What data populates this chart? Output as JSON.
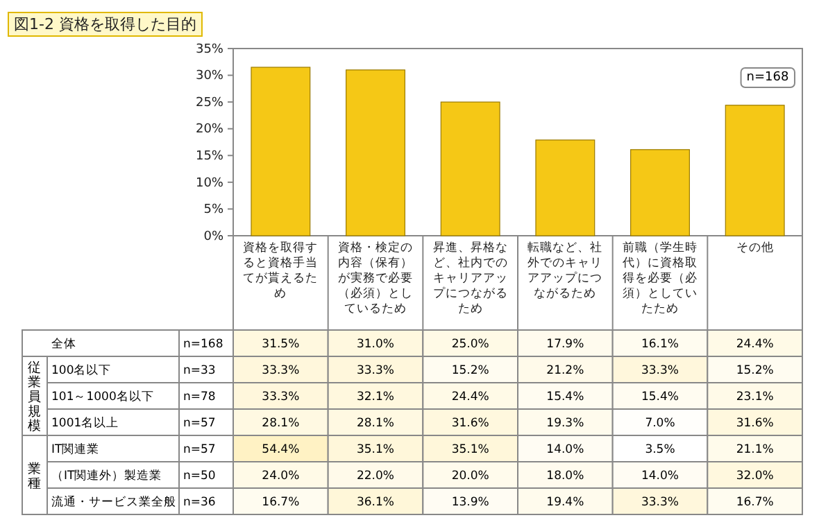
{
  "chart_data": [
    {
      "type": "bar",
      "title": "図1-2 資格を取得した目的",
      "categories": [
        "資格を取得すると資格手当てが貰えるため",
        "資格・検定の内容（保有）が実務で必要（必須）としているため",
        "昇進、昇格など、社内でのキャリアアップにつながるため",
        "転職など、社外でのキャリアアップにつながるため",
        "前職（学生時代）に資格取得を必要（必須）としていたため",
        "その他"
      ],
      "values": [
        31.5,
        31.0,
        25.0,
        17.9,
        16.1,
        24.4
      ],
      "color": "#f5c816",
      "ylim": [
        0,
        35
      ],
      "yticks": [
        {
          "value": 0,
          "label": "0%"
        },
        {
          "value": 5,
          "label": "5%"
        },
        {
          "value": 10,
          "label": "10%"
        },
        {
          "value": 15,
          "label": "15%"
        },
        {
          "value": 20,
          "label": "20%"
        },
        {
          "value": 25,
          "label": "25%"
        },
        {
          "value": 30,
          "label": "30%"
        },
        {
          "value": 35,
          "label": "35%"
        }
      ],
      "grid": false,
      "annotations": [
        "n=168"
      ]
    },
    {
      "type": "heatmap",
      "categories": [
        null,
        null,
        null,
        null,
        null,
        null
      ],
      "y_categories": [
        "全体",
        "100名以下",
        "101～1000名以下",
        "1001名以上",
        "IT関連業",
        "（IT関連外）製造業",
        "流通・サービス業全般"
      ],
      "y2_categories": [
        "n=168",
        "n=33",
        "n=78",
        "n=57",
        "n=57",
        "n=50",
        "n=36"
      ],
      "cells": [
        [
          31.5,
          31.0,
          25.0,
          17.9,
          16.1,
          24.4
        ],
        [
          33.3,
          33.3,
          15.2,
          21.2,
          33.3,
          15.2
        ],
        [
          33.3,
          32.1,
          24.4,
          15.4,
          15.4,
          23.1
        ],
        [
          28.1,
          28.1,
          31.6,
          19.3,
          7.0,
          31.6
        ],
        [
          54.4,
          35.1,
          35.1,
          14.0,
          3.5,
          21.1
        ],
        [
          24.0,
          22.0,
          20.0,
          18.0,
          14.0,
          32.0
        ],
        [
          16.7,
          36.1,
          13.9,
          19.4,
          33.3,
          16.7
        ]
      ],
      "cell_labels": [
        [
          "31.5%",
          "31.0%",
          "25.0%",
          "17.9%",
          "16.1%",
          "24.4%"
        ],
        [
          "33.3%",
          "33.3%",
          "15.2%",
          "21.2%",
          "33.3%",
          "15.2%"
        ],
        [
          "33.3%",
          "32.1%",
          "24.4%",
          "15.4%",
          "15.4%",
          "23.1%"
        ],
        [
          "28.1%",
          "28.1%",
          "31.6%",
          "19.3%",
          "7.0%",
          "31.6%"
        ],
        [
          "54.4%",
          "35.1%",
          "35.1%",
          "14.0%",
          "3.5%",
          "21.1%"
        ],
        [
          "24.0%",
          "22.0%",
          "20.0%",
          "18.0%",
          "14.0%",
          "32.0%"
        ],
        [
          "16.7%",
          "36.1%",
          "13.9%",
          "19.4%",
          "33.3%",
          "16.7%"
        ]
      ],
      "annotations": [
        "従業員規模",
        "業種"
      ]
    }
  ]
}
